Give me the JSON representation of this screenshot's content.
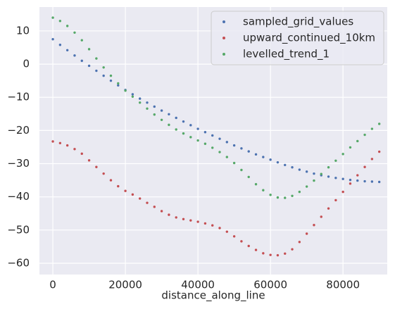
{
  "chart_data": {
    "type": "scatter",
    "xlabel": "distance_along_line",
    "x": [
      0,
      2000,
      4000,
      6000,
      8000,
      10000,
      12000,
      14000,
      16000,
      18000,
      20000,
      22000,
      24000,
      26000,
      28000,
      30000,
      32000,
      34000,
      36000,
      38000,
      40000,
      42000,
      44000,
      46000,
      48000,
      50000,
      52000,
      54000,
      56000,
      58000,
      60000,
      62000,
      64000,
      66000,
      68000,
      70000,
      72000,
      74000,
      76000,
      78000,
      80000,
      82000,
      84000,
      86000,
      88000,
      90000
    ],
    "series": [
      {
        "name": "sampled_grid_values",
        "color": "#4c72b0",
        "values": [
          7.5,
          5.8,
          4.2,
          2.6,
          1.0,
          -0.5,
          -2.0,
          -3.5,
          -5.0,
          -6.4,
          -7.8,
          -9.1,
          -10.4,
          -11.6,
          -12.8,
          -14.0,
          -15.1,
          -16.2,
          -17.3,
          -18.4,
          -19.5,
          -20.5,
          -21.5,
          -22.5,
          -23.5,
          -24.5,
          -25.4,
          -26.3,
          -27.2,
          -28.0,
          -28.8,
          -29.6,
          -30.4,
          -31.1,
          -31.8,
          -32.4,
          -33.0,
          -33.5,
          -33.9,
          -34.3,
          -34.6,
          -34.9,
          -35.1,
          -35.3,
          -35.4,
          -35.5
        ]
      },
      {
        "name": "upward_continued_10km",
        "color": "#c44e52",
        "values": [
          -23.3,
          -23.8,
          -24.5,
          -25.6,
          -27.0,
          -29.0,
          -31.0,
          -33.0,
          -35.0,
          -36.8,
          -38.2,
          -39.3,
          -40.5,
          -41.8,
          -43.0,
          -44.3,
          -45.4,
          -46.2,
          -46.7,
          -47.1,
          -47.5,
          -48.0,
          -48.6,
          -49.4,
          -50.5,
          -51.9,
          -53.4,
          -54.8,
          -56.0,
          -57.0,
          -57.5,
          -57.6,
          -57.1,
          -55.8,
          -53.6,
          -51.1,
          -48.5,
          -46.0,
          -43.5,
          -41.0,
          -38.5,
          -36.0,
          -33.5,
          -31.0,
          -28.6,
          -26.4
        ]
      },
      {
        "name": "levelled_trend_1",
        "color": "#55a868",
        "values": [
          14.0,
          13.0,
          11.5,
          9.5,
          7.2,
          4.5,
          1.7,
          -1.0,
          -3.5,
          -5.8,
          -8.0,
          -9.8,
          -11.6,
          -13.4,
          -15.2,
          -16.8,
          -18.3,
          -19.7,
          -20.9,
          -22.0,
          -23.0,
          -24.0,
          -25.2,
          -26.5,
          -28.0,
          -29.8,
          -31.9,
          -34.0,
          -36.2,
          -38.0,
          -39.4,
          -40.2,
          -40.3,
          -39.7,
          -38.5,
          -36.9,
          -35.1,
          -33.1,
          -31.1,
          -29.1,
          -27.1,
          -25.1,
          -23.2,
          -21.3,
          -19.5,
          -18.0
        ]
      }
    ],
    "xlim": [
      -3700,
      92200
    ],
    "ylim": [
      -63.4,
      17.2
    ],
    "xticks": [
      0,
      20000,
      40000,
      60000,
      80000
    ],
    "yticks": [
      {
        "value": -60,
        "label": "−60"
      },
      {
        "value": -50,
        "label": "−50"
      },
      {
        "value": -40,
        "label": "−40"
      },
      {
        "value": -30,
        "label": "−30"
      },
      {
        "value": -20,
        "label": "−20"
      },
      {
        "value": -10,
        "label": "−10"
      },
      0,
      10
    ],
    "grid": true,
    "legend": "upper right"
  }
}
